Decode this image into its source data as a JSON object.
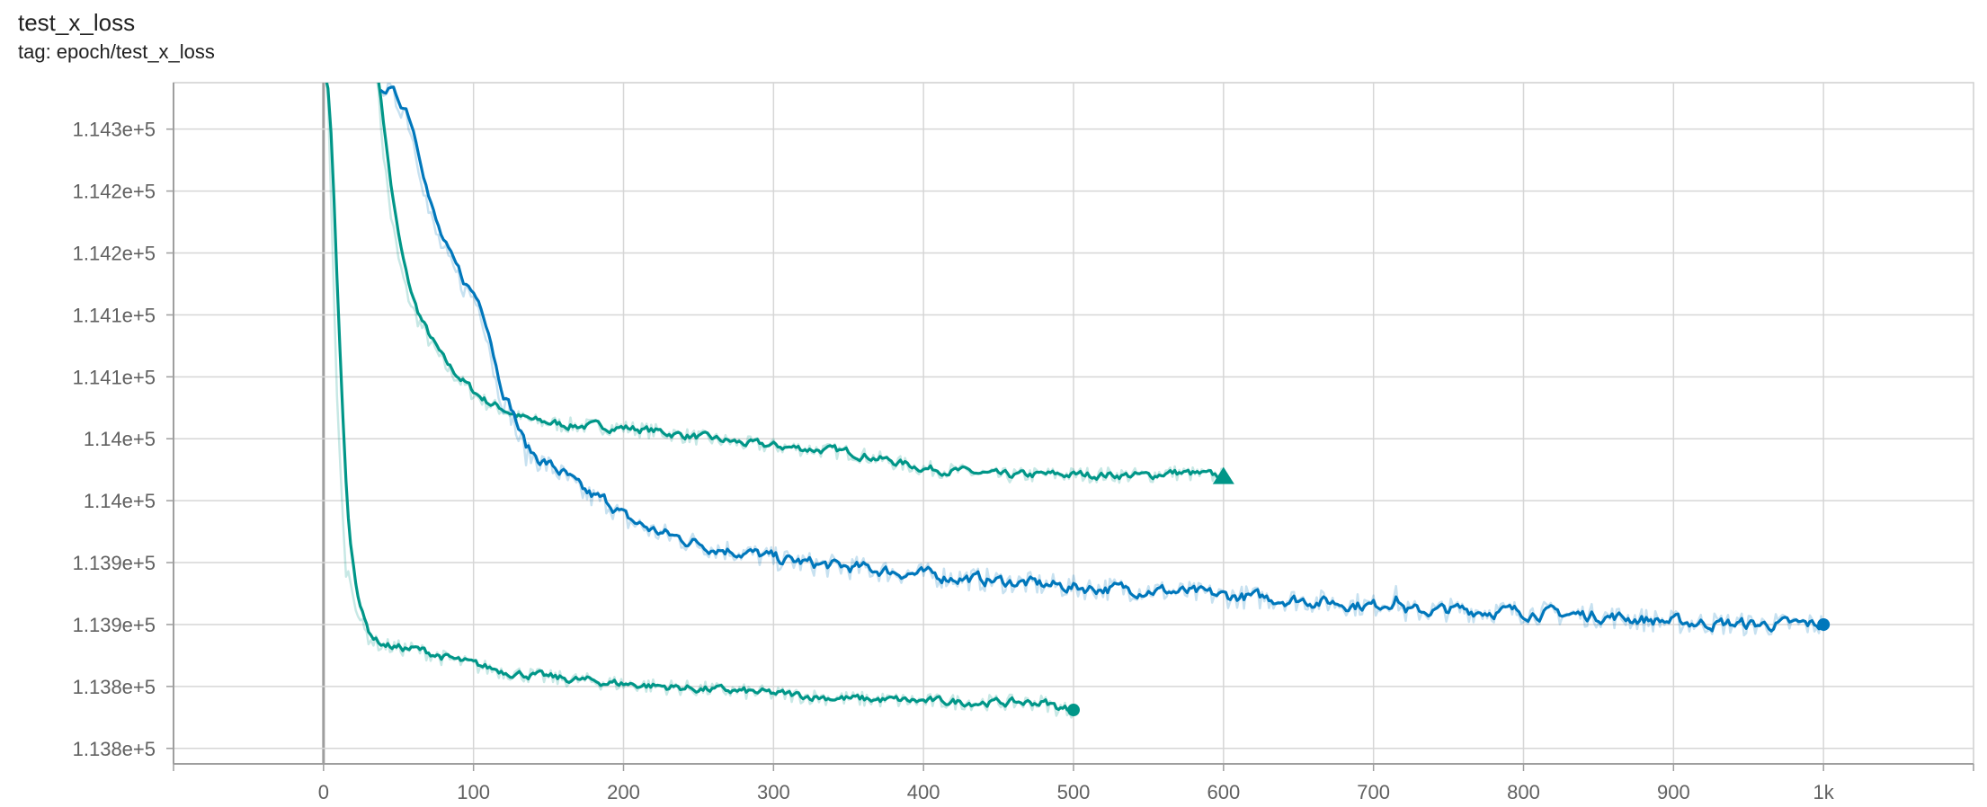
{
  "header": {
    "title": "test_x_loss",
    "tag": "tag: epoch/test_x_loss"
  },
  "chart_data": {
    "type": "line",
    "title": "test_x_loss",
    "subtitle": "tag: epoch/test_x_loss",
    "xlabel": "",
    "ylabel": "",
    "xlim": [
      -100,
      1100
    ],
    "ylim": [
      113797.5,
      114347.5
    ],
    "grid": true,
    "legend": "none",
    "x_ticks": [
      {
        "value": 0,
        "label": "0"
      },
      {
        "value": 100,
        "label": "100"
      },
      {
        "value": 200,
        "label": "200"
      },
      {
        "value": 300,
        "label": "300"
      },
      {
        "value": 400,
        "label": "400"
      },
      {
        "value": 500,
        "label": "500"
      },
      {
        "value": 600,
        "label": "600"
      },
      {
        "value": 700,
        "label": "700"
      },
      {
        "value": 800,
        "label": "800"
      },
      {
        "value": 900,
        "label": "900"
      },
      {
        "value": 1000,
        "label": "1k"
      }
    ],
    "y_ticks": [
      {
        "value": 113810,
        "label": "1.138e+5"
      },
      {
        "value": 113860,
        "label": "1.138e+5"
      },
      {
        "value": 113910,
        "label": "1.139e+5"
      },
      {
        "value": 113960,
        "label": "1.139e+5"
      },
      {
        "value": 114010,
        "label": "1.14e+5"
      },
      {
        "value": 114060,
        "label": "1.14e+5"
      },
      {
        "value": 114110,
        "label": "1.141e+5"
      },
      {
        "value": 114160,
        "label": "1.141e+5"
      },
      {
        "value": 114210,
        "label": "1.142e+5"
      },
      {
        "value": 114260,
        "label": "1.142e+5"
      },
      {
        "value": 114310,
        "label": "1.143e+5"
      }
    ],
    "series": [
      {
        "color": "#009688",
        "marker": "triangle",
        "x": [
          35,
          40,
          45,
          50,
          55,
          60,
          70,
          80,
          90,
          100,
          110,
          120,
          130,
          140,
          150,
          160,
          180,
          200,
          220,
          250,
          280,
          300,
          330,
          350,
          380,
          400,
          420,
          450,
          480,
          500,
          520,
          550,
          560,
          575,
          590,
          600
        ],
        "y": [
          114360,
          114290,
          114240,
          114205,
          114180,
          114163,
          114140,
          114120,
          114108,
          114096,
          114088,
          114083,
          114077,
          114074,
          114073,
          114071,
          114070,
          114069,
          114066,
          114061,
          114056,
          114054,
          114051,
          114049,
          114041,
          114036,
          114034,
          114030,
          114031,
          114031,
          114031,
          114030,
          114033,
          114032,
          114030,
          114030
        ]
      },
      {
        "color": "#0077bb",
        "marker": "circle",
        "x": [
          38,
          40,
          45,
          50,
          55,
          60,
          65,
          70,
          75,
          80,
          85,
          90,
          95,
          100,
          105,
          110,
          115,
          120,
          125,
          130,
          135,
          140,
          150,
          160,
          170,
          180,
          190,
          200,
          220,
          240,
          260,
          280,
          300,
          330,
          360,
          400,
          450,
          500,
          550,
          600,
          650,
          700,
          715,
          720,
          750,
          800,
          850,
          900,
          950,
          1000
        ],
        "y": [
          114350,
          114345,
          114338,
          114330,
          114325,
          114300,
          114275,
          114243,
          114225,
          114212,
          114198,
          114190,
          114180,
          114174,
          114163,
          114140,
          114105,
          114090,
          114080,
          114060,
          114048,
          114045,
          114038,
          114030,
          114018,
          114012,
          114008,
          113995,
          113985,
          113978,
          113972,
          113968,
          113963,
          113958,
          113955,
          113950,
          113945,
          113940,
          113938,
          113933,
          113930,
          113925,
          113932,
          113920,
          113922,
          113920,
          113917,
          113912,
          113910,
          113910
        ]
      },
      {
        "color": "#009688",
        "marker": "circle",
        "x": [
          2,
          3,
          5,
          7,
          9,
          11,
          13,
          15,
          18,
          20,
          23,
          26,
          30,
          35,
          40,
          50,
          60,
          70,
          80,
          90,
          100,
          120,
          150,
          200,
          250,
          300,
          350,
          400,
          450,
          480,
          490,
          500
        ],
        "y": [
          114350,
          114330,
          114250,
          114170,
          114100,
          114040,
          113990,
          113955,
          113945,
          113935,
          113920,
          113908,
          113900,
          113895,
          113893,
          113891,
          113890,
          113887,
          113883,
          113880,
          113877,
          113872,
          113867,
          113862,
          113858,
          113854,
          113850,
          113848,
          113847,
          113847,
          113842,
          113841
        ]
      }
    ]
  }
}
